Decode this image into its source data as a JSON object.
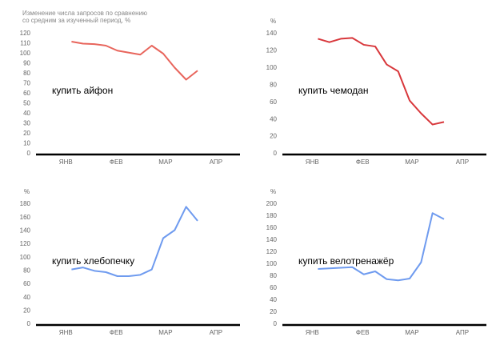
{
  "chart_data": [
    {
      "type": "line",
      "note": [
        "Изменение числа запросов по сравнению",
        "со средним за изученный период, %"
      ],
      "title": "купить айфон",
      "x": [
        0,
        1,
        2,
        3,
        4,
        5,
        6,
        7,
        8,
        9,
        10,
        11
      ],
      "series": [
        {
          "name": "купить айфон",
          "color": "#e8655c",
          "values": [
            112,
            110,
            109.5,
            108,
            103,
            101,
            99,
            108,
            100,
            86,
            74,
            83
          ]
        }
      ],
      "xlim": [
        -3.1,
        14.7
      ],
      "xticks": [
        {
          "value": -0.5,
          "label": "ЯНВ"
        },
        {
          "value": 3.9,
          "label": "ФЕВ"
        },
        {
          "value": 8.2,
          "label": "МАР"
        },
        {
          "value": 12.6,
          "label": "АПР"
        }
      ],
      "ylim": [
        0,
        120
      ],
      "yticks": [
        0,
        10,
        20,
        30,
        40,
        50,
        60,
        70,
        80,
        90,
        100,
        110,
        120
      ],
      "grid": false
    },
    {
      "type": "line",
      "ylabel": "%",
      "title": "купить чемодан",
      "x": [
        0,
        1,
        2,
        3,
        4,
        5,
        6,
        7,
        8,
        9,
        10,
        11
      ],
      "series": [
        {
          "name": "купить чемодан",
          "color": "#d8373b",
          "values": [
            134,
            130,
            134,
            135,
            127,
            125,
            104,
            96,
            62,
            47,
            34,
            37
          ]
        }
      ],
      "xlim": [
        -3.1,
        14.7
      ],
      "xticks": [
        {
          "value": -0.5,
          "label": "ЯНВ"
        },
        {
          "value": 3.9,
          "label": "ФЕВ"
        },
        {
          "value": 8.2,
          "label": "МАР"
        },
        {
          "value": 12.6,
          "label": "АПР"
        }
      ],
      "ylim": [
        0,
        140
      ],
      "yticks": [
        0,
        20,
        40,
        60,
        80,
        100,
        120,
        140
      ],
      "grid": false
    },
    {
      "type": "line",
      "ylabel": "%",
      "title": "купить хлебопечку",
      "x": [
        0,
        1,
        2,
        3,
        4,
        5,
        6,
        7,
        8,
        9,
        10,
        11
      ],
      "series": [
        {
          "name": "купить хлебопечку",
          "color": "#6f9bef",
          "values": [
            82,
            85,
            80,
            78,
            72,
            72,
            74,
            82,
            129,
            141,
            176,
            155
          ]
        }
      ],
      "xlim": [
        -3.1,
        14.7
      ],
      "xticks": [
        {
          "value": -0.5,
          "label": "ЯНВ"
        },
        {
          "value": 3.9,
          "label": "ФЕВ"
        },
        {
          "value": 8.2,
          "label": "МАР"
        },
        {
          "value": 12.6,
          "label": "АПР"
        }
      ],
      "ylim": [
        0,
        180
      ],
      "yticks": [
        0,
        20,
        40,
        60,
        80,
        100,
        120,
        140,
        160,
        180
      ],
      "grid": false
    },
    {
      "type": "line",
      "ylabel": "%",
      "title": "купить велотренажёр",
      "x": [
        0,
        1,
        2,
        3,
        4,
        5,
        6,
        7,
        8,
        9,
        10,
        11
      ],
      "series": [
        {
          "name": "купить велотренажёр",
          "color": "#6f9bef",
          "values": [
            92,
            93,
            94,
            95,
            83,
            88,
            75,
            73,
            76,
            103,
            185,
            175
          ]
        }
      ],
      "xlim": [
        -3.1,
        14.7
      ],
      "xticks": [
        {
          "value": -0.5,
          "label": "ЯНВ"
        },
        {
          "value": 3.9,
          "label": "ФЕВ"
        },
        {
          "value": 8.2,
          "label": "МАР"
        },
        {
          "value": 12.6,
          "label": "АПР"
        }
      ],
      "ylim": [
        0,
        200
      ],
      "yticks": [
        0,
        20,
        40,
        60,
        80,
        100,
        120,
        140,
        160,
        180,
        200
      ],
      "grid": false
    }
  ]
}
